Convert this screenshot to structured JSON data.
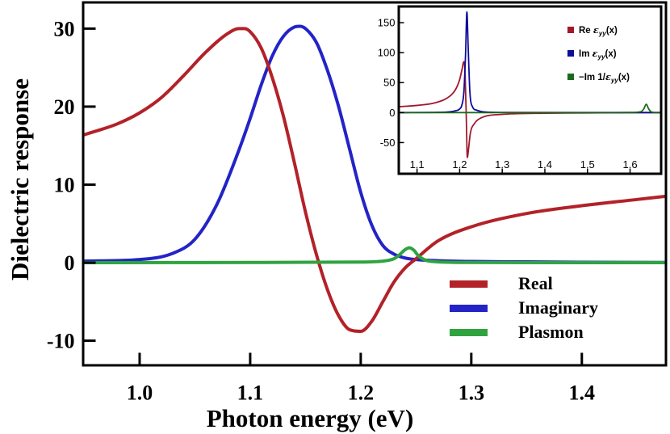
{
  "chart_data": [
    {
      "type": "line",
      "title": "",
      "xlabel": "Photon energy (eV)",
      "ylabel": "Dielectric response",
      "xlim": [
        0.95,
        1.475
      ],
      "ylim": [
        -13,
        33.2
      ],
      "xticks": [
        1.0,
        1.1,
        1.2,
        1.3,
        1.4
      ],
      "yticks": [
        -10,
        0,
        10,
        20,
        30
      ],
      "xtick_labels": [
        "1.0",
        "1.1",
        "1.2",
        "1.3",
        "1.4"
      ],
      "ytick_labels": [
        "-10",
        "0",
        "10",
        "20",
        "30"
      ],
      "legend_position": "bottom-right",
      "series": [
        {
          "name": "Real",
          "color": "#b22228",
          "x": [
            0.95,
            0.98,
            1.0,
            1.02,
            1.04,
            1.06,
            1.08,
            1.09,
            1.095,
            1.1,
            1.11,
            1.12,
            1.13,
            1.14,
            1.15,
            1.16,
            1.17,
            1.18,
            1.19,
            1.2,
            1.21,
            1.22,
            1.23,
            1.24,
            1.25,
            1.27,
            1.3,
            1.35,
            1.4,
            1.45,
            1.475
          ],
          "y": [
            16.4,
            17.8,
            19.2,
            21.2,
            24.0,
            27.0,
            29.4,
            30.0,
            30.0,
            29.6,
            27.5,
            23.7,
            18.8,
            12.8,
            6.5,
            1.0,
            -3.5,
            -6.8,
            -8.6,
            -8.8,
            -7.5,
            -5.0,
            -2.5,
            -0.7,
            0.5,
            2.8,
            4.6,
            6.3,
            7.3,
            8.1,
            8.5
          ]
        },
        {
          "name": "Imaginary",
          "color": "#2323c8",
          "x": [
            0.95,
            1.0,
            1.03,
            1.05,
            1.07,
            1.09,
            1.1,
            1.11,
            1.12,
            1.13,
            1.14,
            1.145,
            1.15,
            1.16,
            1.17,
            1.18,
            1.19,
            1.2,
            1.21,
            1.22,
            1.23,
            1.24,
            1.25,
            1.27,
            1.3,
            1.35,
            1.4,
            1.475
          ],
          "y": [
            0.2,
            0.4,
            1.2,
            3.0,
            7.5,
            14.5,
            18.5,
            22.8,
            26.5,
            29.0,
            30.2,
            30.3,
            30.0,
            28.2,
            24.6,
            20.0,
            14.5,
            9.0,
            4.8,
            2.2,
            1.1,
            0.6,
            0.4,
            0.25,
            0.15,
            0.1,
            0.05,
            0.02
          ]
        },
        {
          "name": "Plasmon",
          "color": "#2fa33f",
          "x": [
            0.95,
            1.1,
            1.2,
            1.22,
            1.23,
            1.235,
            1.24,
            1.244,
            1.248,
            1.252,
            1.258,
            1.265,
            1.28,
            1.3,
            1.475
          ],
          "y": [
            0.0,
            0.02,
            0.08,
            0.2,
            0.5,
            1.0,
            1.65,
            1.9,
            1.6,
            0.9,
            0.35,
            0.15,
            0.05,
            0.02,
            0.0
          ]
        }
      ]
    },
    {
      "type": "line",
      "title": "",
      "xlabel": "",
      "ylabel": "",
      "xlim": [
        1.06,
        1.67
      ],
      "ylim": [
        -100,
        175
      ],
      "xticks": [
        1.1,
        1.2,
        1.3,
        1.4,
        1.5,
        1.6
      ],
      "yticks": [
        -50,
        0,
        50,
        100,
        150
      ],
      "xtick_labels": [
        "1.1",
        "1.2",
        "1.3",
        "1.4",
        "1.5",
        "1.6"
      ],
      "ytick_labels": [
        "-50",
        "0",
        "50",
        "100",
        "150"
      ],
      "legend_position": "top-right",
      "series": [
        {
          "name": "Re ε_yy(x)",
          "color": "#a0182c",
          "x": [
            1.06,
            1.1,
            1.14,
            1.17,
            1.19,
            1.2,
            1.205,
            1.21,
            1.213,
            1.216,
            1.218,
            1.221,
            1.225,
            1.235,
            1.25,
            1.3,
            1.4,
            1.5,
            1.6,
            1.67
          ],
          "y": [
            10,
            12,
            16,
            24,
            38,
            55,
            70,
            85,
            60,
            -20,
            -75,
            -60,
            -35,
            -18,
            -9,
            -3,
            -1,
            -0.5,
            0,
            0
          ]
        },
        {
          "name": "Im ε_yy(x)",
          "color": "#0d0d9a",
          "x": [
            1.06,
            1.15,
            1.19,
            1.2,
            1.205,
            1.21,
            1.214,
            1.217,
            1.22,
            1.224,
            1.23,
            1.24,
            1.26,
            1.3,
            1.67
          ],
          "y": [
            0,
            0.5,
            3,
            6,
            12,
            35,
            100,
            168,
            110,
            35,
            10,
            4,
            1,
            0.3,
            0
          ]
        },
        {
          "name": "−Im 1/ε_yy(x)",
          "color": "#1c6a1e",
          "x": [
            1.06,
            1.5,
            1.6,
            1.625,
            1.632,
            1.638,
            1.643,
            1.648,
            1.655,
            1.67
          ],
          "y": [
            0,
            0,
            0.2,
            1.5,
            6,
            14,
            7,
            2,
            0.3,
            0
          ]
        }
      ],
      "legend_labels": {
        "re_prefix": "Re ",
        "im_prefix": "Im ",
        "plasmon_prefix": "−Im 1/",
        "eps": "ε",
        "sub": "yy",
        "arg": "(x)"
      }
    }
  ]
}
